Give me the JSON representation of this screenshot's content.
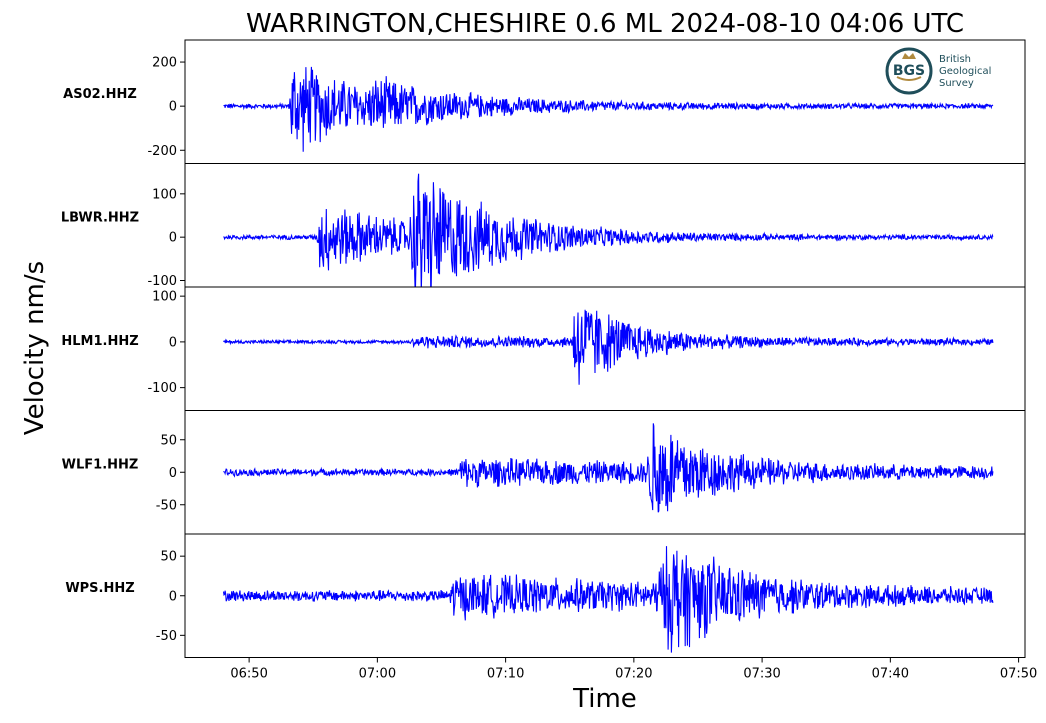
{
  "chart_data": {
    "type": "line",
    "title": "WARRINGTON,CHESHIRE 0.6 ML   2024-08-10 04:06 UTC",
    "xlabel": "Time",
    "ylabel": "Velocity nm/s",
    "x_ticks": [
      "06:50",
      "07:00",
      "07:10",
      "07:20",
      "07:30",
      "07:40",
      "07:50"
    ],
    "xlim": [
      "06:45",
      "07:50:30"
    ],
    "trace_span": [
      "06:48",
      "07:48"
    ],
    "line_color": "#0000ff",
    "panels": [
      {
        "station": "AS02.HHZ",
        "ylim": [
          -260,
          300
        ],
        "y_ticks": [
          {
            "value": 200,
            "label": "200"
          },
          {
            "value": 0,
            "label": "0"
          },
          {
            "value": -200,
            "label": "-200"
          }
        ],
        "noise": 12,
        "bursts": [
          {
            "time": "06:53:20",
            "amp": 250,
            "decay_min": 6,
            "rise_min": 0.2
          },
          {
            "time": "07:00:00",
            "amp": 60,
            "decay_min": 10,
            "rise_min": 1
          }
        ]
      },
      {
        "station": "LBWR.HHZ",
        "ylim": [
          -115,
          170
        ],
        "y_ticks": [
          {
            "value": 100,
            "label": "100"
          },
          {
            "value": 0,
            "label": "0"
          },
          {
            "value": -100,
            "label": "-100"
          }
        ],
        "noise": 6,
        "bursts": [
          {
            "time": "06:55:30",
            "amp": 90,
            "decay_min": 8,
            "rise_min": 0.2
          },
          {
            "time": "07:03:00",
            "amp": 150,
            "decay_min": 6,
            "rise_min": 0.5
          }
        ]
      },
      {
        "station": "HLM1.HHZ",
        "ylim": [
          -150,
          120
        ],
        "y_ticks": [
          {
            "value": 100,
            "label": "100"
          },
          {
            "value": 0,
            "label": "0"
          },
          {
            "value": -100,
            "label": "-100"
          }
        ],
        "noise": 4,
        "bursts": [
          {
            "time": "07:03:00",
            "amp": 12,
            "decay_min": 40,
            "rise_min": 0.5
          },
          {
            "time": "07:15:20",
            "amp": 120,
            "decay_min": 4,
            "rise_min": 0.1
          }
        ]
      },
      {
        "station": "WLF1.HHZ",
        "ylim": [
          -95,
          95
        ],
        "y_ticks": [
          {
            "value": 50,
            "label": "50"
          },
          {
            "value": 0,
            "label": "0"
          },
          {
            "value": -50,
            "label": "-50"
          }
        ],
        "noise": 6,
        "bursts": [
          {
            "time": "07:06:30",
            "amp": 20,
            "decay_min": 30,
            "rise_min": 0.3
          },
          {
            "time": "07:21:30",
            "amp": 90,
            "decay_min": 4,
            "rise_min": 0.5
          }
        ]
      },
      {
        "station": "WPS.HHZ",
        "ylim": [
          -78,
          78
        ],
        "y_ticks": [
          {
            "value": 50,
            "label": "50"
          },
          {
            "value": 0,
            "label": "0"
          },
          {
            "value": -50,
            "label": "-50"
          }
        ],
        "noise": 8,
        "bursts": [
          {
            "time": "07:06:00",
            "amp": 25,
            "decay_min": 20,
            "rise_min": 0.5
          },
          {
            "time": "07:23:00",
            "amp": 70,
            "decay_min": 5,
            "rise_min": 1.5
          }
        ]
      }
    ]
  },
  "logo": {
    "initials": "BGS",
    "line1": "British",
    "line2": "Geological",
    "line3": "Survey",
    "ring_color": "#1f4e5a",
    "accent_color": "#b08a3e"
  }
}
